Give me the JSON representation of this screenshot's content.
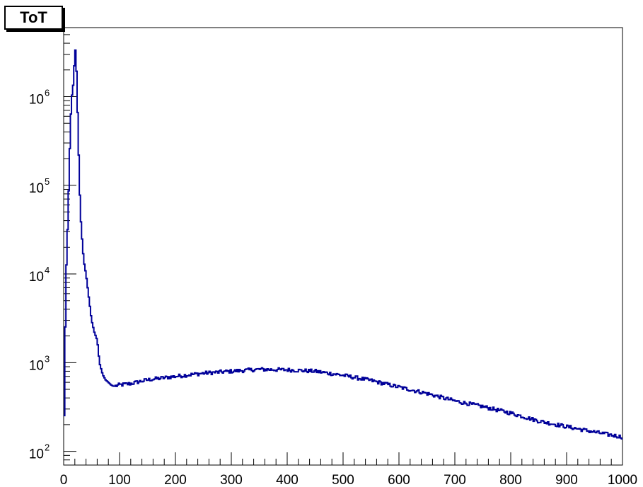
{
  "chart_data": {
    "type": "line",
    "title": "ToT",
    "xlabel": "",
    "ylabel": "",
    "xlim": [
      0,
      1000
    ],
    "ylim": [
      70,
      6000000
    ],
    "yscale": "log",
    "line_color": "#000099",
    "grid": false,
    "x_ticks": [
      {
        "value": 0,
        "label": "0"
      },
      {
        "value": 100,
        "label": "100"
      },
      {
        "value": 200,
        "label": "200"
      },
      {
        "value": 300,
        "label": "300"
      },
      {
        "value": 400,
        "label": "400"
      },
      {
        "value": 500,
        "label": "500"
      },
      {
        "value": 600,
        "label": "600"
      },
      {
        "value": 700,
        "label": "700"
      },
      {
        "value": 800,
        "label": "800"
      },
      {
        "value": 900,
        "label": "900"
      },
      {
        "value": 1000,
        "label": "1000"
      }
    ],
    "y_ticks": [
      {
        "value": 100,
        "base": "10",
        "exp": "2"
      },
      {
        "value": 1000,
        "base": "10",
        "exp": "3"
      },
      {
        "value": 10000,
        "base": "10",
        "exp": "4"
      },
      {
        "value": 100000,
        "base": "10",
        "exp": "5"
      },
      {
        "value": 1000000,
        "base": "10",
        "exp": "6"
      }
    ],
    "series": [
      {
        "x": [
          0,
          4,
          6,
          8,
          10,
          12,
          14,
          16,
          18,
          20,
          22,
          24,
          26,
          28,
          30,
          32,
          36,
          40,
          45,
          50,
          55,
          60,
          62,
          64,
          66,
          70,
          75,
          80,
          85,
          90,
          95,
          100,
          120,
          150,
          200,
          250,
          300,
          350,
          400,
          450,
          500,
          550,
          600,
          650,
          700,
          750,
          800,
          850,
          900,
          950,
          1000
        ],
        "y": [
          80,
          8000,
          20000,
          50000,
          150000,
          450000,
          900000,
          1200000,
          1500000,
          3300000,
          3400000,
          1100000,
          400000,
          120000,
          50000,
          30000,
          14000,
          10000,
          5500,
          3000,
          2200,
          1800,
          1400,
          1000,
          900,
          730,
          640,
          600,
          560,
          540,
          550,
          560,
          580,
          640,
          700,
          760,
          800,
          840,
          830,
          800,
          720,
          630,
          530,
          450,
          370,
          320,
          270,
          220,
          190,
          165,
          145
        ]
      }
    ]
  }
}
